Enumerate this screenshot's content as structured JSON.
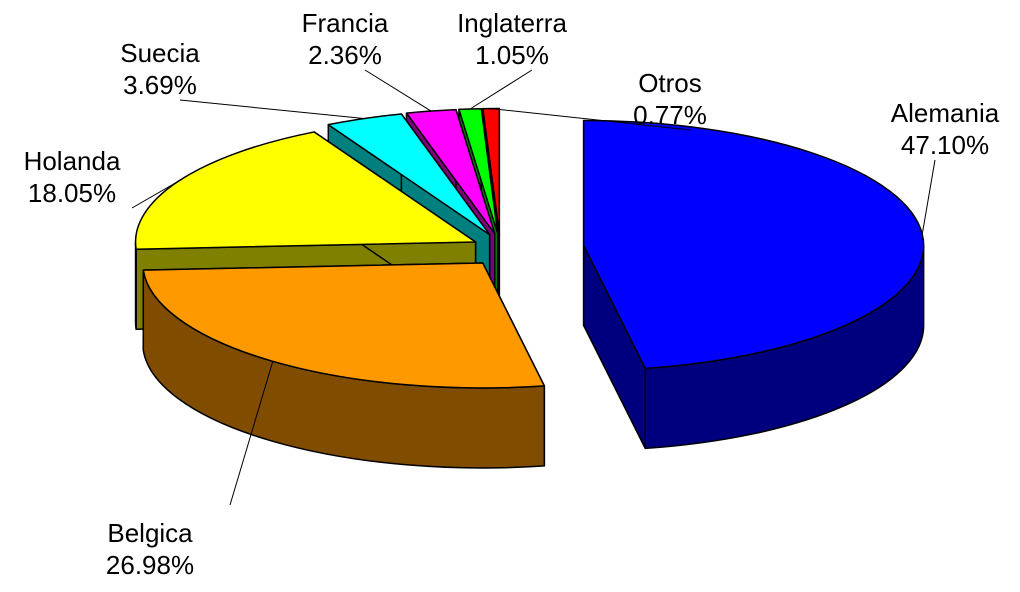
{
  "chart_data": {
    "type": "pie",
    "categories": [
      "Alemania",
      "Belgica",
      "Holanda",
      "Suecia",
      "Francia",
      "Inglaterra",
      "Otros"
    ],
    "values": [
      47.1,
      26.98,
      18.05,
      3.69,
      2.36,
      1.05,
      0.77
    ],
    "value_labels": [
      "47.10%",
      "26.98%",
      "18.05%",
      "3.69%",
      "2.36%",
      "1.05%",
      "0.77%"
    ],
    "colors": [
      "#0000ff",
      "#ff9900",
      "#ffff00",
      "#00ffff",
      "#ff00ff",
      "#00ff00",
      "#ff0000"
    ]
  }
}
